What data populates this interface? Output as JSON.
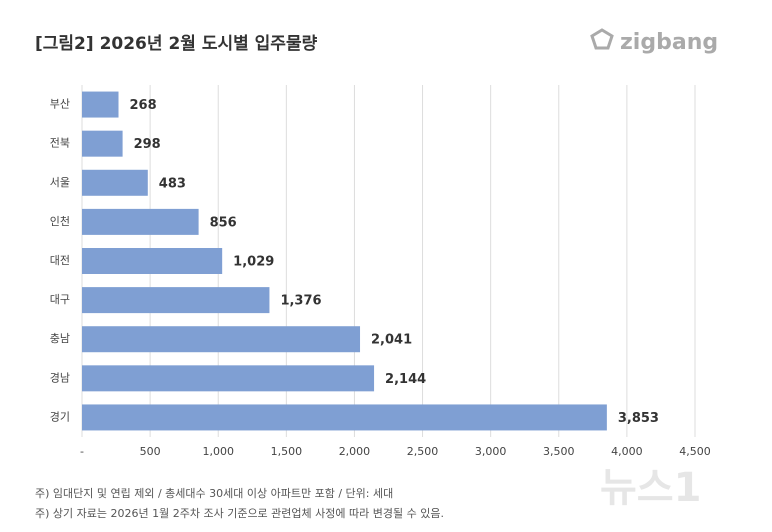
{
  "chart_data": {
    "type": "hbar",
    "title": "[그림2] 2026년 2월 도시별 입주물량",
    "logo": "zigbang",
    "categories": [
      "부산",
      "전북",
      "서울",
      "인천",
      "대전",
      "대구",
      "충남",
      "경남",
      "경기"
    ],
    "values": [
      268,
      298,
      483,
      856,
      1029,
      1376,
      2041,
      2144,
      3853
    ],
    "value_labels": [
      "268",
      "298",
      "483",
      "856",
      "1,029",
      "1,376",
      "2,041",
      "2,144",
      "3,853"
    ],
    "color": "#7f9fd3",
    "xlim": [
      0,
      4500
    ],
    "xticks": [
      {
        "value": 0,
        "label": "-"
      },
      500,
      {
        "value": 1000,
        "label": "1,000"
      },
      {
        "value": 1500,
        "label": "1,500"
      },
      {
        "value": 2000,
        "label": "2,000"
      },
      {
        "value": 2500,
        "label": "2,500"
      },
      {
        "value": 3000,
        "label": "3,000"
      },
      {
        "value": 3500,
        "label": "3,500"
      },
      {
        "value": 4000,
        "label": "4,000"
      },
      {
        "value": 4500,
        "label": "4,500"
      }
    ],
    "grid": true,
    "notes": [
      "주) 임대단지 및 연립 제외 / 총세대수 30세대 이상 아파트만 포함 / 단위: 세대",
      "주) 상기 자료는 2026년 1월 2주차 조사 기준으로 관련업체 사정에 따라 변경될 수 있음."
    ],
    "watermark": "뉴스1"
  }
}
